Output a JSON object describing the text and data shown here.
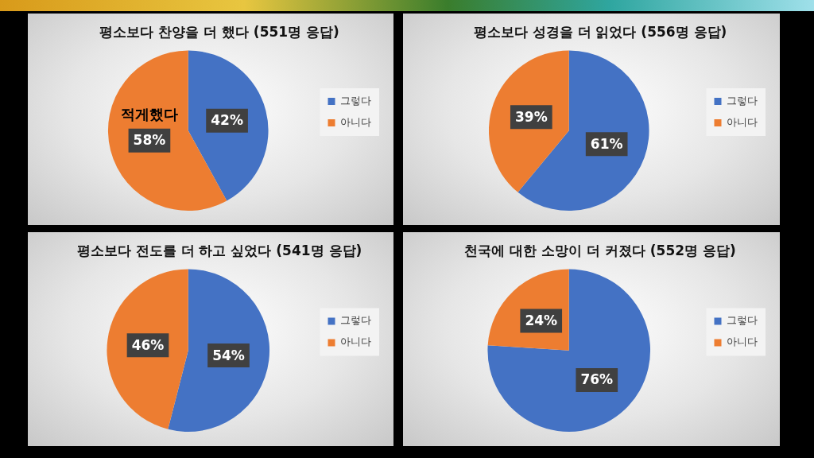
{
  "chart_data": [
    {
      "type": "pie",
      "title": "평소보다 찬양을 더 했다 (551명 응답)",
      "categories": [
        "그렇다",
        "아니다"
      ],
      "values": [
        42,
        58
      ],
      "colors": [
        "#4472c4",
        "#ed7d31"
      ],
      "value_labels": [
        "42%",
        "58%"
      ],
      "legend": "right",
      "annotations": [
        "적게했다"
      ]
    },
    {
      "type": "pie",
      "title": "평소보다 성경을 더 읽었다 (556명 응답)",
      "categories": [
        "그렇다",
        "아니다"
      ],
      "values": [
        61,
        39
      ],
      "colors": [
        "#4472c4",
        "#ed7d31"
      ],
      "value_labels": [
        "61%",
        "39%"
      ],
      "legend": "right"
    },
    {
      "type": "pie",
      "title": "평소보다 전도를 더 하고 싶었다 (541명 응답)",
      "categories": [
        "그렇다",
        "아니다"
      ],
      "values": [
        54,
        46
      ],
      "colors": [
        "#4472c4",
        "#ed7d31"
      ],
      "value_labels": [
        "54%",
        "46%"
      ],
      "legend": "right"
    },
    {
      "type": "pie",
      "title": "천국에 대한 소망이 더 커졌다 (552명 응답)",
      "categories": [
        "그렇다",
        "아니다"
      ],
      "values": [
        76,
        24
      ],
      "colors": [
        "#4472c4",
        "#ed7d31"
      ],
      "value_labels": [
        "76%",
        "24%"
      ],
      "legend": "right"
    }
  ]
}
